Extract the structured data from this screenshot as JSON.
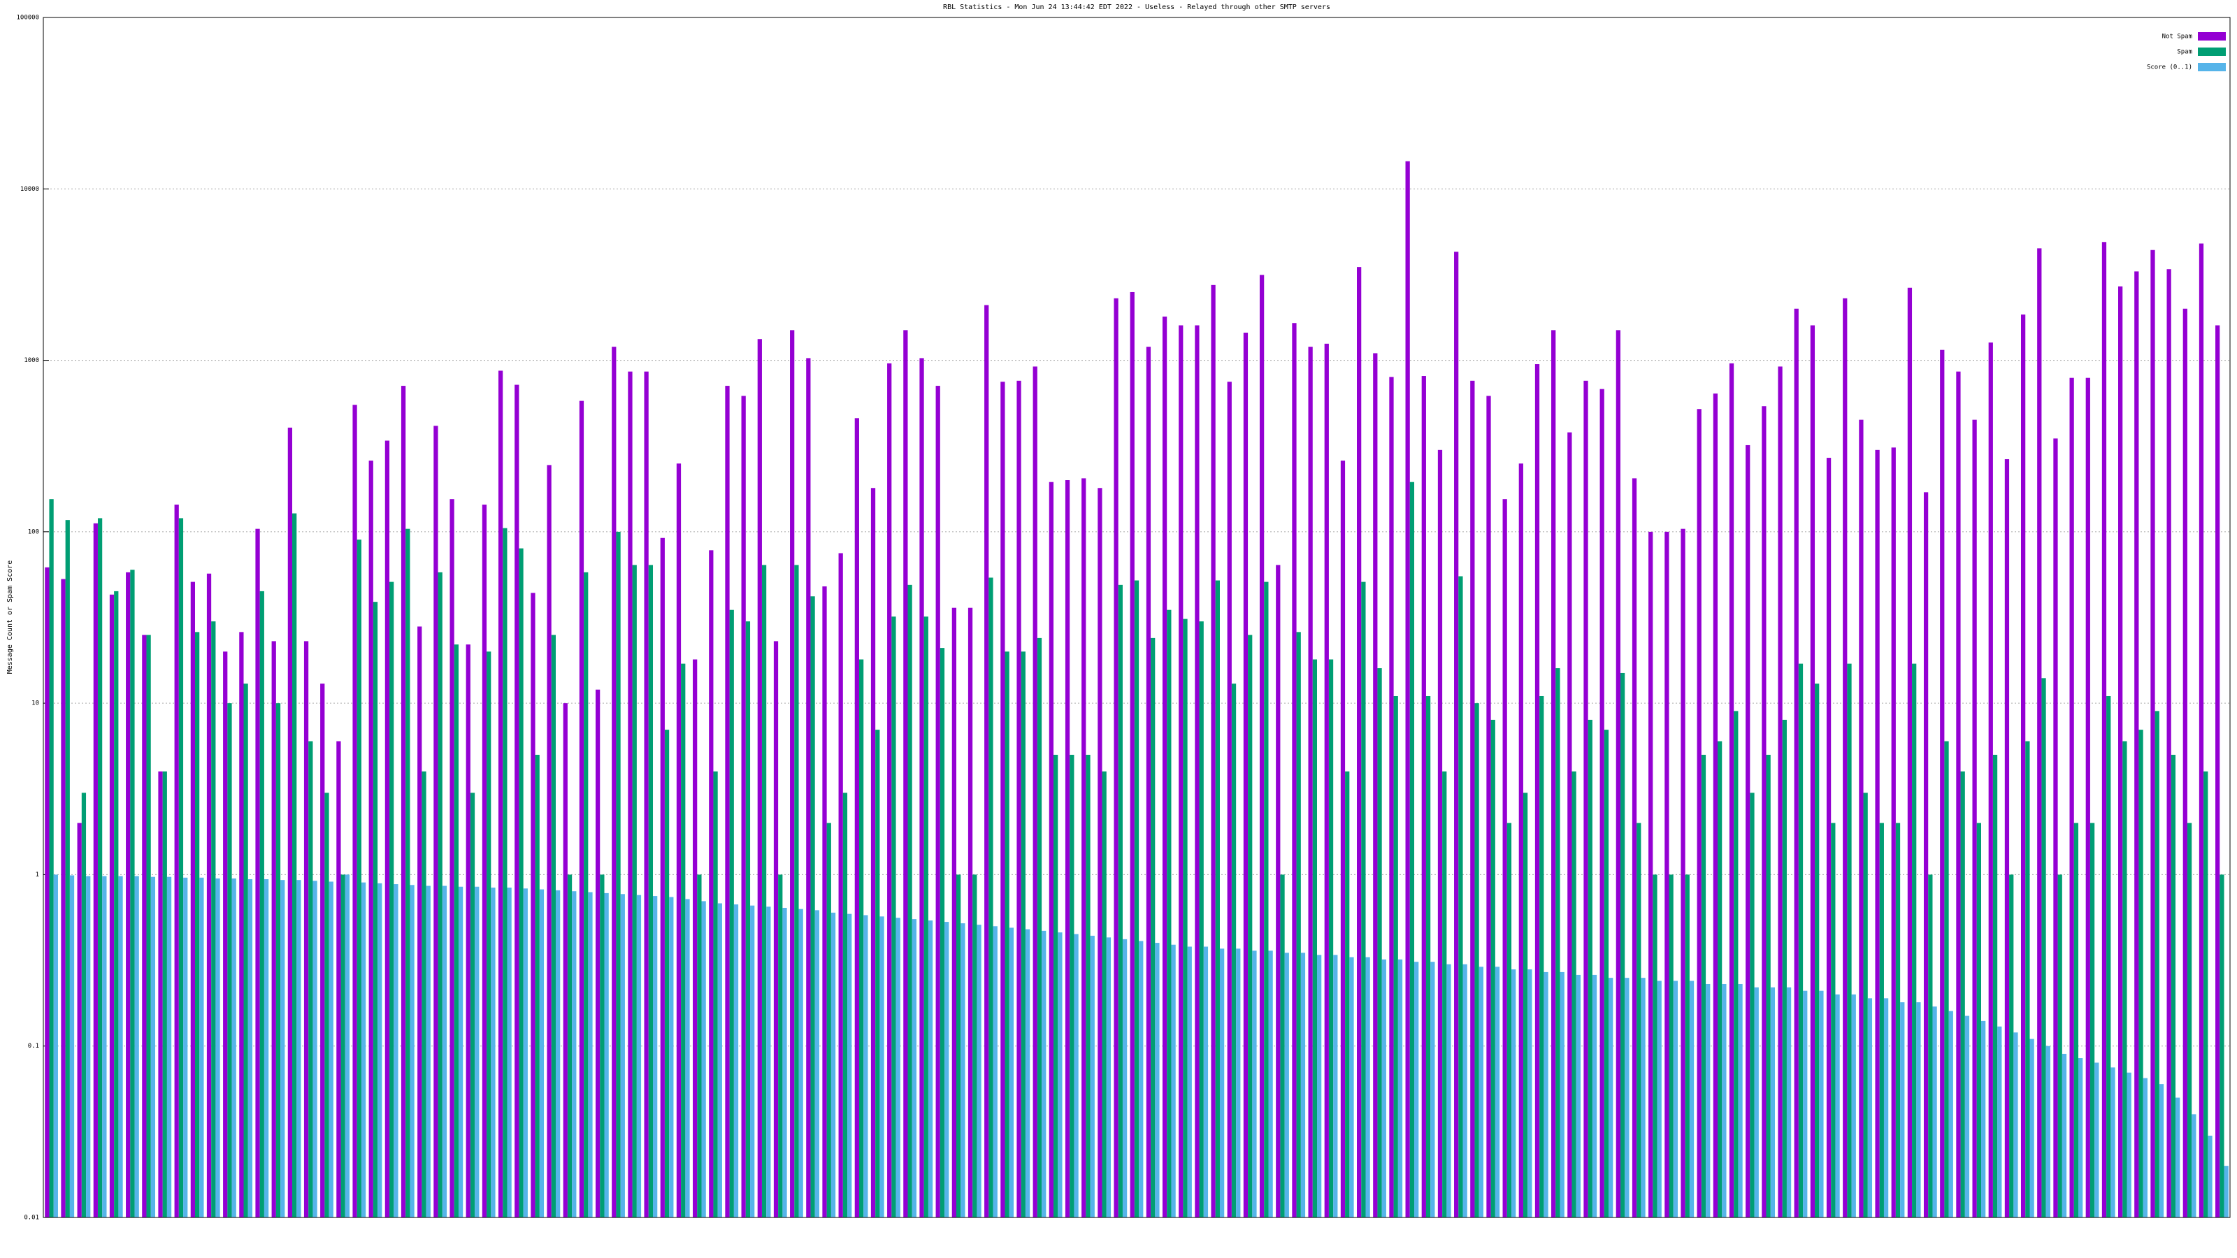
{
  "chart_data": {
    "type": "bar",
    "title": "RBL Statistics - Mon Jun 24 13:44:42 EDT 2022 - Useless - Relayed through other SMTP servers",
    "y_label": "Message Count or Spam Score",
    "log_scale": true,
    "grid": true,
    "legend_position": "top-right",
    "ylim": [
      0.01,
      100000
    ],
    "yticks": [
      0.01,
      0.1,
      1,
      10,
      100,
      1000,
      10000,
      100000
    ],
    "categories": [
      null,
      null,
      null,
      null,
      null,
      null,
      null,
      null,
      null,
      null,
      null,
      null,
      null,
      null,
      null,
      null,
      null,
      null,
      null,
      null,
      null,
      null,
      null,
      null,
      null,
      null,
      null,
      null,
      null,
      null,
      null,
      null,
      null,
      null,
      null,
      null,
      null,
      null,
      null,
      null,
      null,
      null,
      null,
      null,
      null,
      null,
      null,
      null,
      null,
      null,
      null,
      null,
      null,
      null,
      null,
      null,
      null,
      null,
      null,
      null,
      null,
      null,
      null,
      null,
      null,
      null,
      null,
      null,
      null,
      null,
      null,
      null,
      null,
      null,
      null,
      null,
      null,
      null,
      null,
      null,
      null,
      null,
      null,
      null,
      null,
      null,
      null,
      null,
      null,
      null,
      null,
      null,
      null,
      null,
      null,
      null,
      null,
      null,
      null,
      null,
      null,
      null,
      null,
      null,
      null,
      null,
      null,
      null,
      null,
      null,
      null,
      null,
      null,
      null,
      null,
      null,
      null,
      null,
      null,
      null,
      null,
      null,
      null,
      null,
      null,
      null,
      null,
      null,
      null,
      null,
      null,
      null,
      null,
      null,
      null
    ],
    "series": [
      {
        "name": "Not Spam",
        "color": "#9400d3",
        "values": [
          62,
          53,
          2,
          112,
          43,
          58,
          25,
          4,
          144,
          51,
          57,
          20,
          26,
          104,
          23,
          405,
          23,
          13,
          6,
          550,
          260,
          340,
          710,
          28,
          415,
          155,
          22,
          144,
          870,
          720,
          44,
          245,
          10,
          580,
          12,
          1200,
          860,
          860,
          92,
          250,
          18,
          78,
          710,
          620,
          1330,
          23,
          1500,
          1030,
          48,
          75,
          460,
          180,
          960,
          1500,
          1030,
          710,
          36,
          36,
          2100,
          750,
          760,
          920,
          195,
          200,
          205,
          180,
          2300,
          2500,
          1200,
          1800,
          1600,
          1600,
          2750,
          750,
          1450,
          3150,
          64,
          1650,
          1200,
          1250,
          260,
          3500,
          1100,
          800,
          14500,
          810,
          300,
          4300,
          760,
          620,
          155,
          250,
          950,
          1500,
          380,
          760,
          680,
          1500,
          205,
          100,
          100,
          104,
          520,
          640,
          960,
          320,
          540,
          920,
          2000,
          1600,
          270,
          2300,
          450,
          300,
          310,
          2650,
          170,
          1150,
          860,
          450,
          1270,
          265,
          1850,
          4500,
          350,
          790,
          790,
          4900,
          2700,
          3300,
          4400,
          3400,
          2000,
          4800,
          1600
        ]
      },
      {
        "name": "Spam",
        "color": "#009e73",
        "values": [
          155,
          117,
          3,
          120,
          45,
          60,
          25,
          4,
          120,
          26,
          30,
          10,
          13,
          45,
          10,
          128,
          6,
          3,
          1,
          90,
          39,
          51,
          104,
          4,
          58,
          22,
          3,
          20,
          105,
          80,
          5,
          25,
          1,
          58,
          1,
          100,
          64,
          64,
          7,
          17,
          1,
          4,
          35,
          30,
          64,
          1,
          64,
          42,
          2,
          3,
          18,
          7,
          32,
          49,
          32,
          21,
          1,
          1,
          54,
          20,
          20,
          24,
          5,
          5,
          5,
          4,
          49,
          52,
          24,
          35,
          31,
          30,
          52,
          13,
          25,
          51,
          1,
          26,
          18,
          18,
          4,
          51,
          16,
          11,
          195,
          11,
          4,
          55,
          10,
          8,
          2,
          3,
          11,
          16,
          4,
          8,
          7,
          15,
          2,
          1,
          1,
          1,
          5,
          6,
          9,
          3,
          5,
          8,
          17,
          13,
          2,
          17,
          3,
          2,
          2,
          17,
          1,
          6,
          4,
          2,
          5,
          1,
          6,
          14,
          1,
          2,
          2,
          11,
          6,
          7,
          9,
          5,
          2,
          4,
          1
        ]
      },
      {
        "name": "Score (0..1)",
        "color": "#56b4e9",
        "values": [
          1,
          0.99,
          0.98,
          0.98,
          0.98,
          0.98,
          0.97,
          0.97,
          0.96,
          0.96,
          0.95,
          0.95,
          0.94,
          0.94,
          0.93,
          0.93,
          0.92,
          0.91,
          1,
          0.9,
          0.89,
          0.88,
          0.87,
          0.86,
          0.86,
          0.85,
          0.85,
          0.84,
          0.84,
          0.83,
          0.82,
          0.81,
          0.8,
          0.79,
          0.78,
          0.77,
          0.76,
          0.75,
          0.74,
          0.72,
          0.7,
          0.68,
          0.67,
          0.66,
          0.65,
          0.64,
          0.63,
          0.62,
          0.6,
          0.59,
          0.58,
          0.57,
          0.56,
          0.55,
          0.54,
          0.53,
          0.52,
          0.51,
          0.5,
          0.49,
          0.48,
          0.47,
          0.46,
          0.45,
          0.44,
          0.43,
          0.42,
          0.41,
          0.4,
          0.39,
          0.38,
          0.38,
          0.37,
          0.37,
          0.36,
          0.36,
          0.35,
          0.35,
          0.34,
          0.34,
          0.33,
          0.33,
          0.32,
          0.32,
          0.31,
          0.31,
          0.3,
          0.3,
          0.29,
          0.29,
          0.28,
          0.28,
          0.27,
          0.27,
          0.26,
          0.26,
          0.25,
          0.25,
          0.25,
          0.24,
          0.24,
          0.24,
          0.23,
          0.23,
          0.23,
          0.22,
          0.22,
          0.22,
          0.21,
          0.21,
          0.2,
          0.2,
          0.19,
          0.19,
          0.18,
          0.18,
          0.17,
          0.16,
          0.15,
          0.14,
          0.13,
          0.12,
          0.11,
          0.1,
          0.09,
          0.085,
          0.08,
          0.075,
          0.07,
          0.065,
          0.06,
          0.05,
          0.04,
          0.03,
          0.02
        ]
      }
    ]
  }
}
